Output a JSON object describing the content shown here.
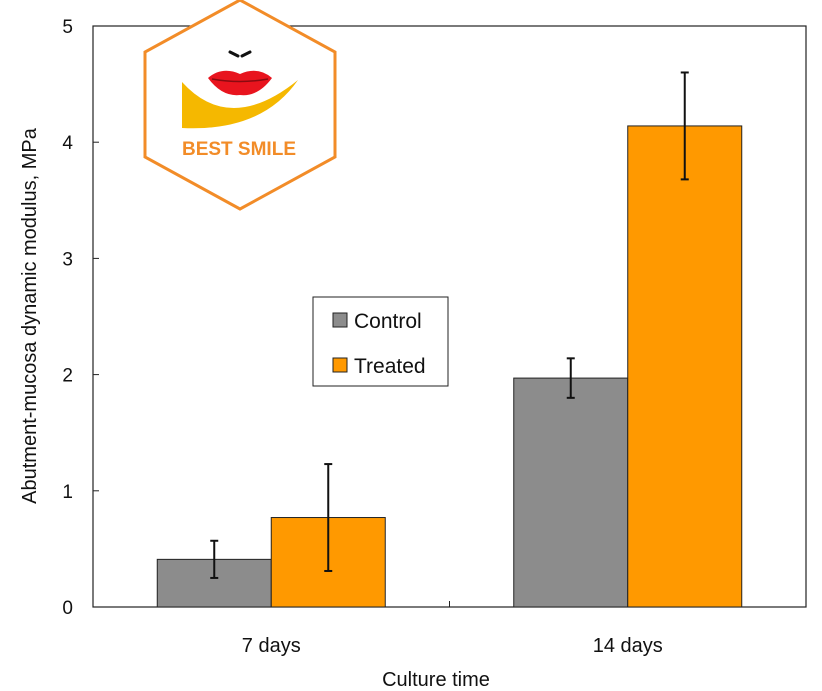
{
  "chart_data": {
    "type": "bar",
    "categories": [
      "7 days",
      "14 days"
    ],
    "series": [
      {
        "name": "Control",
        "values": [
          0.41,
          1.97
        ],
        "errors": [
          0.16,
          0.17
        ],
        "color": "#8c8c8c"
      },
      {
        "name": "Treated",
        "values": [
          0.77,
          4.14
        ],
        "errors": [
          0.46,
          0.46
        ],
        "color": "#ff9900"
      }
    ],
    "title": "",
    "xlabel": "Culture time",
    "ylabel": "Abutment-mucosa dynamic modulus, MPa",
    "ylim": [
      0,
      5
    ],
    "yticks": [
      0,
      1,
      2,
      3,
      4,
      5
    ],
    "grid": false,
    "legend_position": "center"
  },
  "logo": {
    "text": "BEST SMILE",
    "border_color": "#f28c28",
    "lips_color": "#e8141e",
    "accent_color": "#f5b800"
  }
}
